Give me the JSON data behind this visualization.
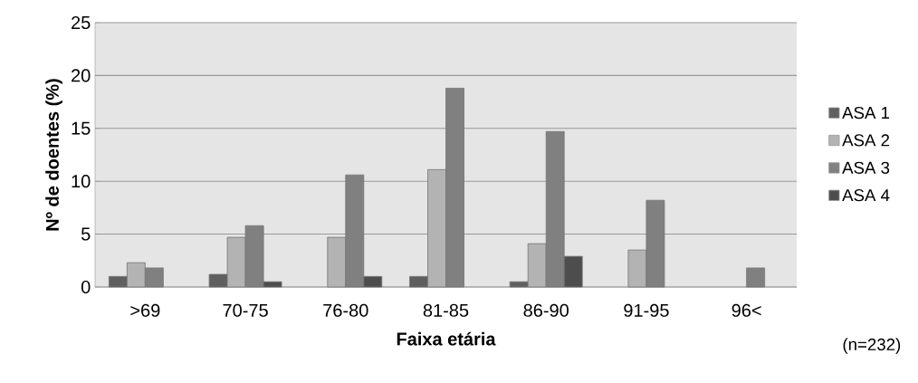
{
  "chart_data": {
    "type": "bar",
    "xlabel": "Faixa etária",
    "ylabel": "Nº de doentes (%)",
    "categories": [
      ">69",
      "70-75",
      "76-80",
      "81-85",
      "86-90",
      "91-95",
      "96<"
    ],
    "series": [
      {
        "name": "ASA 1",
        "color": "#5f5f5f",
        "values": [
          1.0,
          1.2,
          null,
          1.0,
          0.5,
          null,
          null
        ]
      },
      {
        "name": "ASA 2",
        "color": "#b3b3b3",
        "values": [
          2.3,
          4.7,
          4.7,
          11.1,
          4.1,
          3.5,
          null
        ]
      },
      {
        "name": "ASA 3",
        "color": "#808080",
        "values": [
          1.8,
          5.8,
          10.6,
          18.8,
          14.7,
          8.2,
          1.8
        ]
      },
      {
        "name": "ASA 4",
        "color": "#4d4d4d",
        "values": [
          null,
          0.5,
          1.0,
          null,
          2.9,
          null,
          null
        ]
      }
    ],
    "ylim": [
      0,
      25
    ],
    "yticks": [
      0,
      5,
      10,
      15,
      20,
      25
    ],
    "grid": "y",
    "legend": "right",
    "annotations": [
      "(n=232)"
    ]
  }
}
